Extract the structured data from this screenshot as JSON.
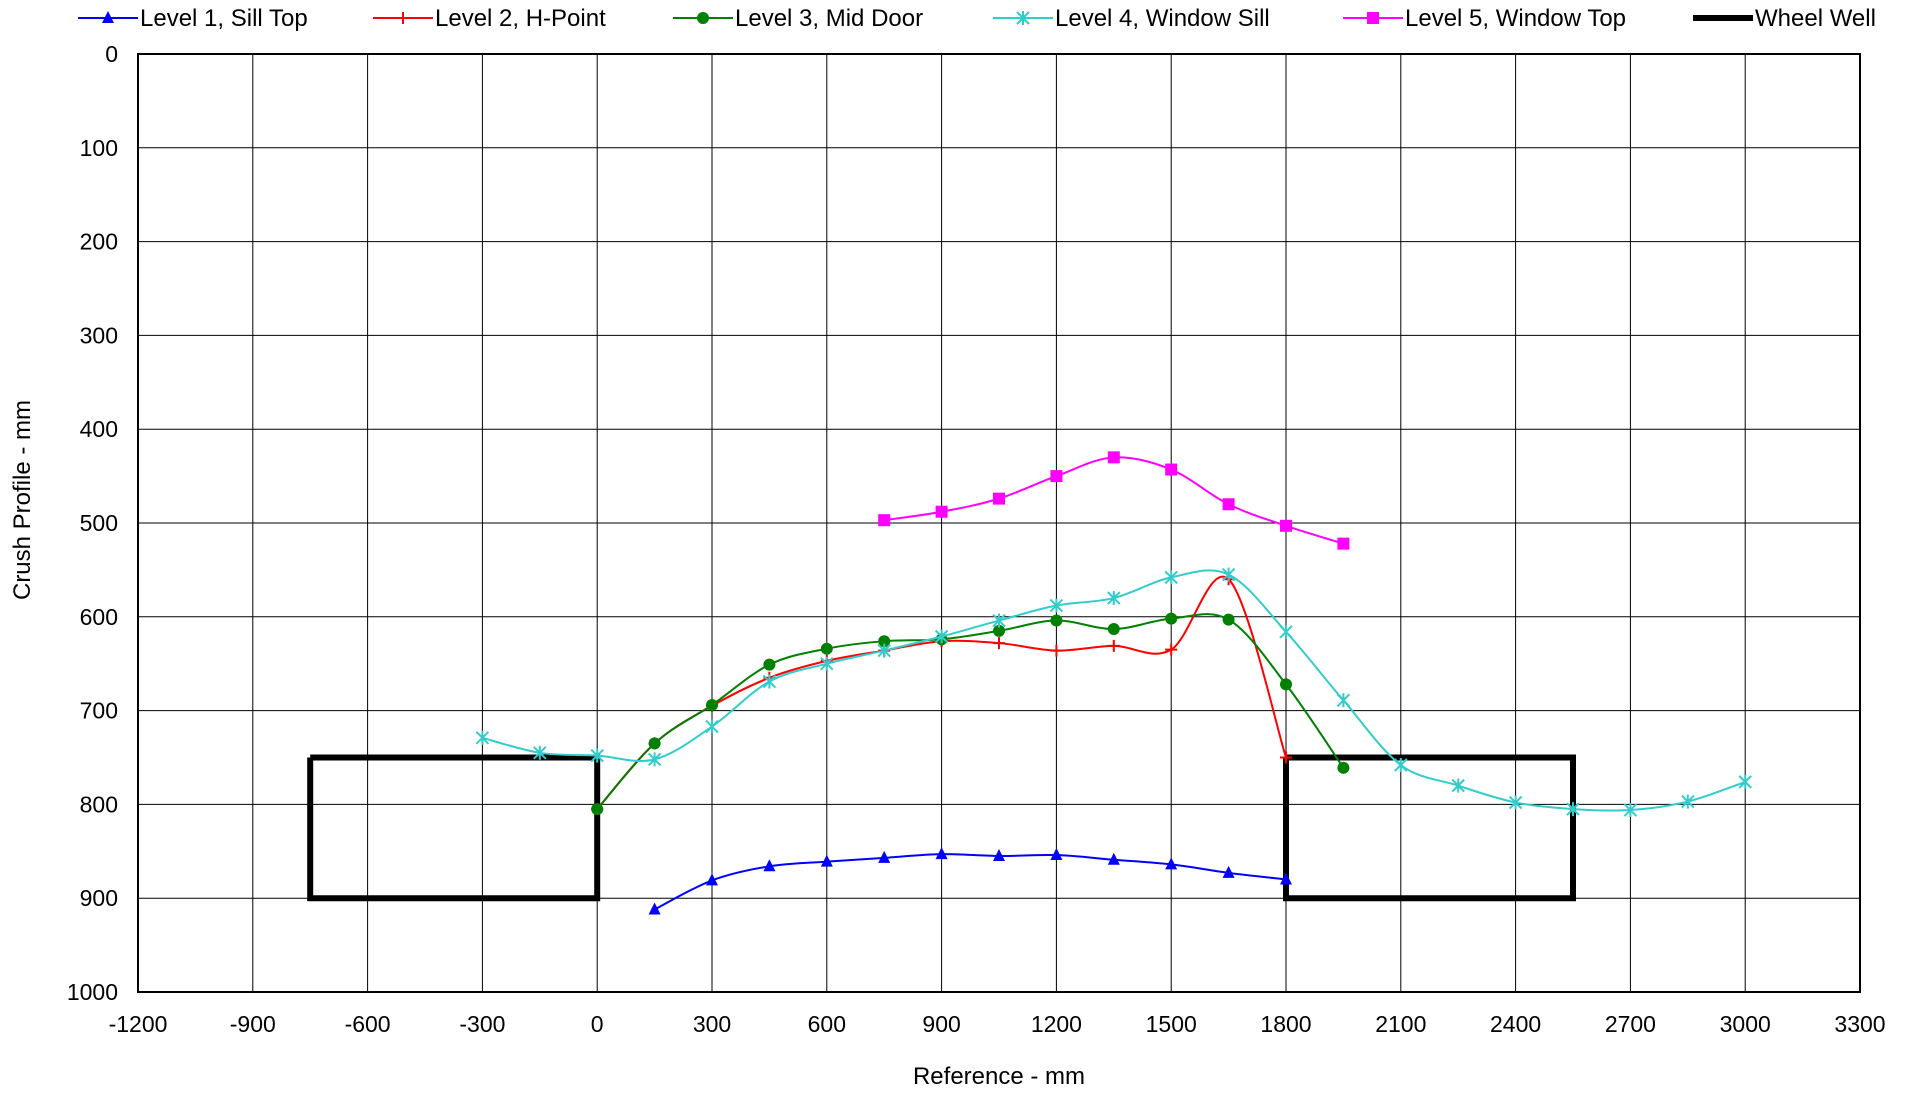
{
  "chart_data": {
    "type": "line",
    "title": "",
    "xlabel": "Reference - mm",
    "ylabel": "Crush Profile - mm",
    "xlim": [
      -1200,
      3300
    ],
    "ylim": [
      0,
      1000
    ],
    "y_inverted": true,
    "grid": true,
    "legend_position": "top",
    "x_ticks": [
      "-1200",
      "-900",
      "-600",
      "-300",
      "0",
      "300",
      "600",
      "900",
      "1200",
      "1500",
      "1800",
      "2100",
      "2400",
      "2700",
      "3000",
      "3300"
    ],
    "y_ticks": [
      "0",
      "100",
      "200",
      "300",
      "400",
      "500",
      "600",
      "700",
      "800",
      "900",
      "1000"
    ],
    "series": [
      {
        "name": "Level 1, Sill Top",
        "color": "#0000ff",
        "marker": "triangle",
        "points": [
          [
            150,
            912
          ],
          [
            300,
            881
          ],
          [
            450,
            866
          ],
          [
            600,
            861
          ],
          [
            750,
            857
          ],
          [
            900,
            853
          ],
          [
            1050,
            855
          ],
          [
            1200,
            854
          ],
          [
            1350,
            859
          ],
          [
            1500,
            864
          ],
          [
            1650,
            873
          ],
          [
            1800,
            880
          ]
        ]
      },
      {
        "name": "Level 2, H-Point",
        "color": "#ff0000",
        "marker": "plus",
        "points": [
          [
            0,
            805
          ],
          [
            150,
            735
          ],
          [
            300,
            695
          ],
          [
            450,
            665
          ],
          [
            600,
            647
          ],
          [
            750,
            636
          ],
          [
            900,
            626
          ],
          [
            1050,
            628
          ],
          [
            1200,
            636
          ],
          [
            1350,
            631
          ],
          [
            1500,
            635
          ],
          [
            1650,
            560
          ],
          [
            1800,
            750
          ]
        ]
      },
      {
        "name": "Level 3, Mid Door",
        "color": "#008000",
        "marker": "circle",
        "points": [
          [
            0,
            805
          ],
          [
            150,
            735
          ],
          [
            300,
            694
          ],
          [
            450,
            651
          ],
          [
            600,
            634
          ],
          [
            750,
            626
          ],
          [
            900,
            624
          ],
          [
            1050,
            615
          ],
          [
            1200,
            604
          ],
          [
            1350,
            613
          ],
          [
            1500,
            602
          ],
          [
            1650,
            603
          ],
          [
            1800,
            672
          ],
          [
            1950,
            761
          ]
        ]
      },
      {
        "name": "Level 4, Window Sill",
        "color": "#33cccc",
        "marker": "asterisk",
        "points": [
          [
            -300,
            729
          ],
          [
            -150,
            745
          ],
          [
            0,
            748
          ],
          [
            150,
            752
          ],
          [
            300,
            717
          ],
          [
            450,
            669
          ],
          [
            600,
            650
          ],
          [
            750,
            636
          ],
          [
            900,
            621
          ],
          [
            1050,
            604
          ],
          [
            1200,
            588
          ],
          [
            1350,
            580
          ],
          [
            1500,
            558
          ],
          [
            1650,
            555
          ],
          [
            1800,
            616
          ],
          [
            1950,
            689
          ],
          [
            2100,
            758
          ],
          [
            2250,
            780
          ],
          [
            2400,
            798
          ],
          [
            2550,
            805
          ],
          [
            2700,
            806
          ],
          [
            2850,
            797
          ],
          [
            3000,
            776
          ]
        ]
      },
      {
        "name": "Level 5, Window Top",
        "color": "#ff00ff",
        "marker": "square",
        "points": [
          [
            750,
            497
          ],
          [
            900,
            488
          ],
          [
            1050,
            474
          ],
          [
            1200,
            450
          ],
          [
            1350,
            430
          ],
          [
            1500,
            443
          ],
          [
            1650,
            480
          ],
          [
            1800,
            503
          ],
          [
            1950,
            522
          ]
        ]
      }
    ],
    "wheel_well": {
      "name": "Wheel Well",
      "color": "#000000",
      "boxes": [
        [
          [
            -750,
            750
          ],
          [
            0,
            750
          ],
          [
            0,
            900
          ],
          [
            -750,
            900
          ],
          [
            -750,
            750
          ]
        ],
        [
          [
            1800,
            750
          ],
          [
            2550,
            750
          ],
          [
            2550,
            900
          ],
          [
            1800,
            900
          ],
          [
            1800,
            750
          ]
        ]
      ]
    }
  }
}
